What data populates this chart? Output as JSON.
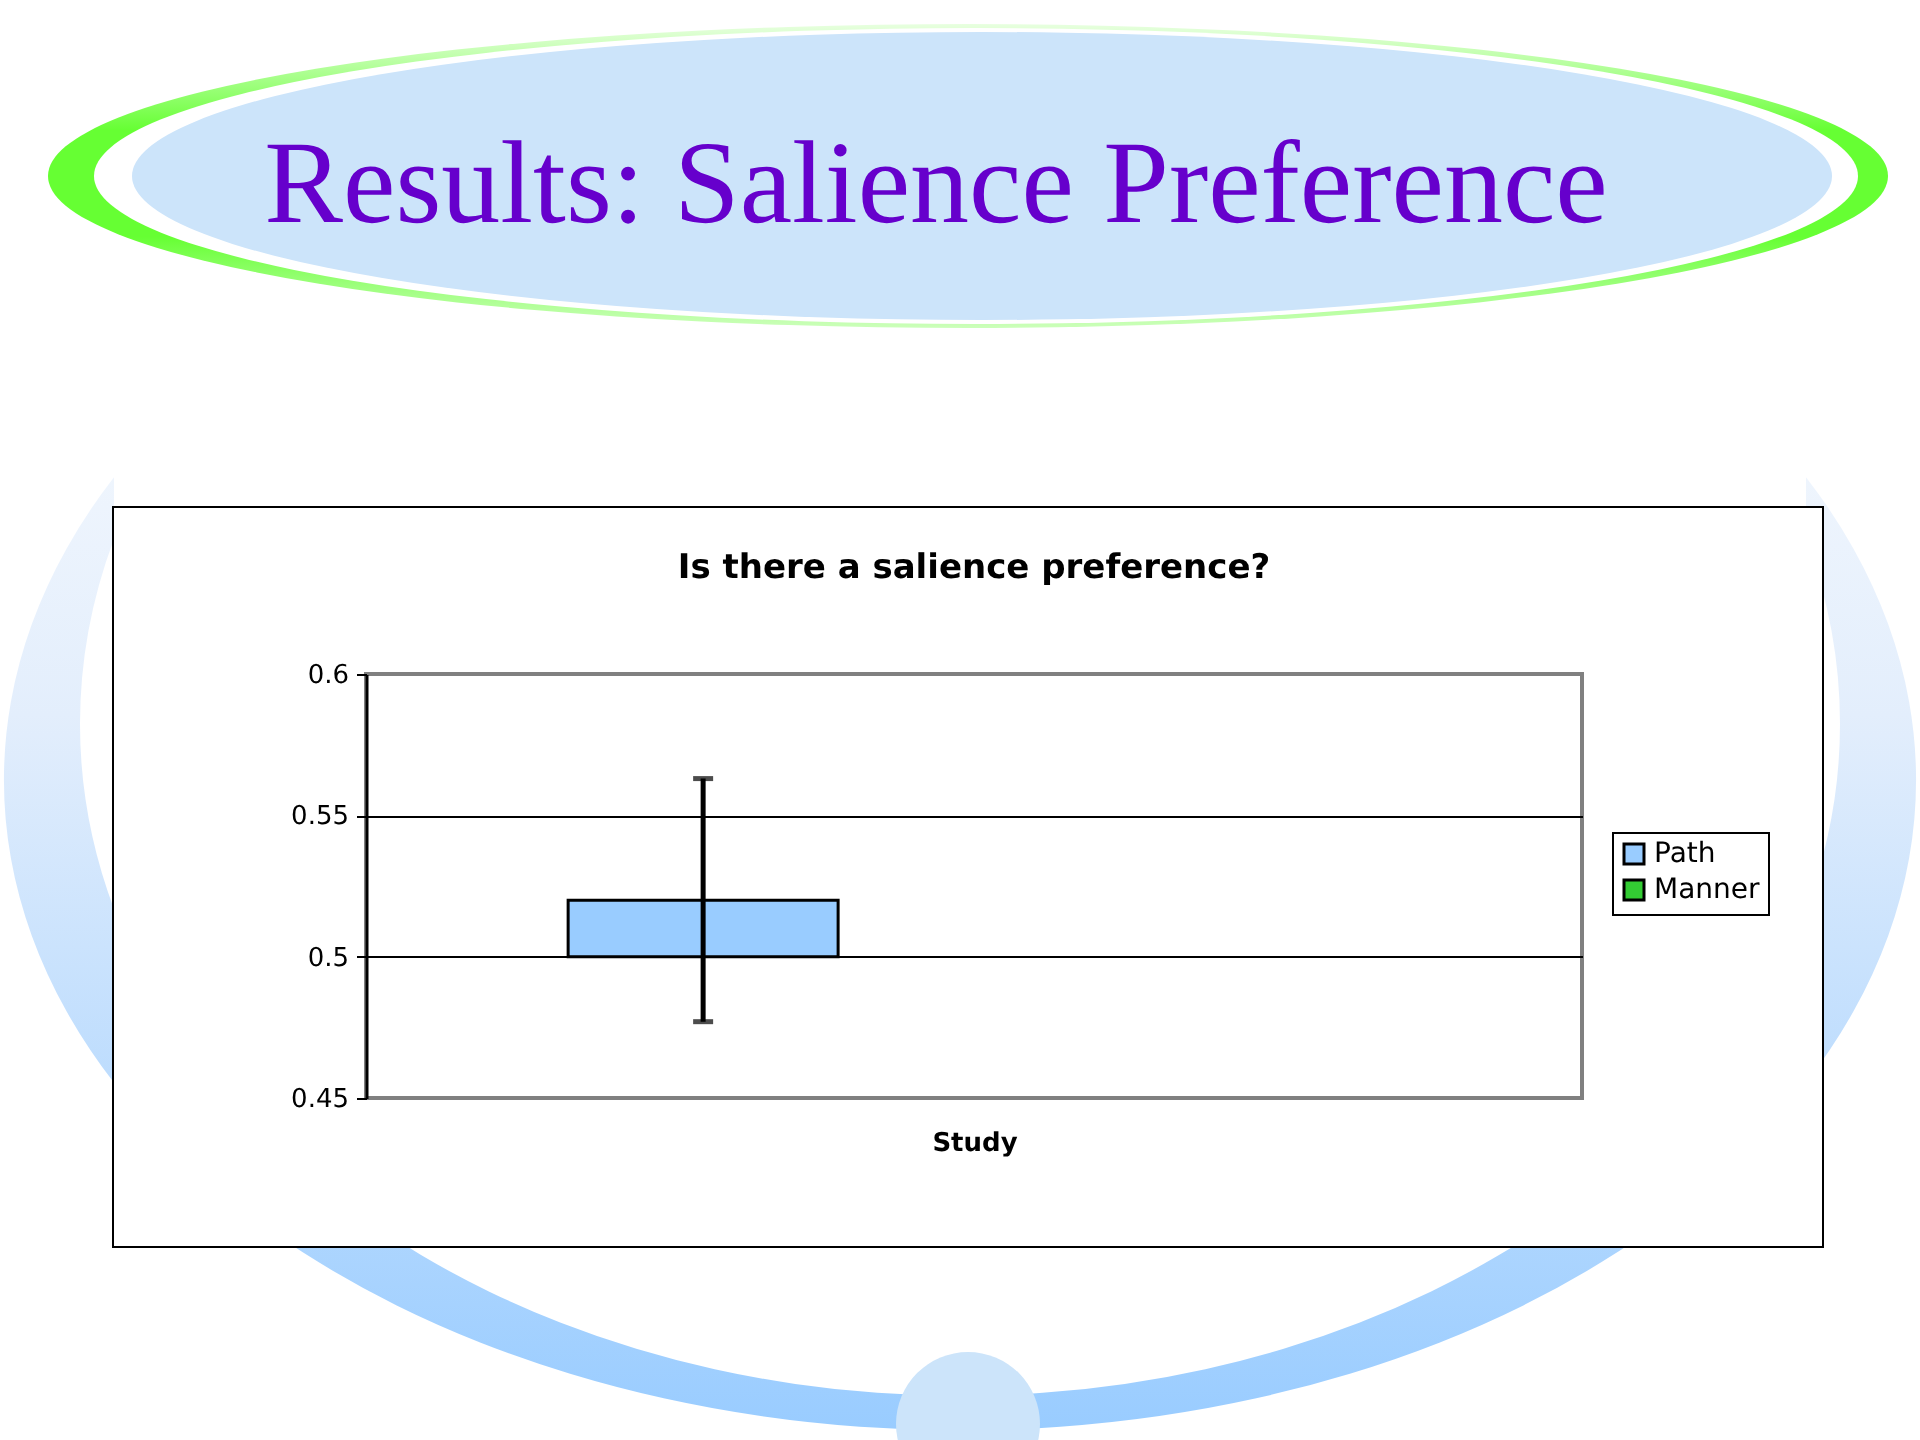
{
  "chart_data": {
    "type": "bar",
    "title": "Results: Salience Preference",
    "subtitle": "Is there a salience preference?",
    "xlabel": "Study",
    "categories": [
      null
    ],
    "series": [
      {
        "name": "Path",
        "color": "#99ccff",
        "values": [
          0.02
        ],
        "base": [
          0.5
        ],
        "errors": [
          0.043
        ]
      },
      {
        "name": "Manner",
        "color": "#33cc33",
        "values": [
          null
        ]
      }
    ],
    "ylim": [
      0.45,
      0.6
    ],
    "yticks": [
      0.45,
      0.5,
      0.55,
      0.6
    ],
    "grid": "y",
    "legend": "right",
    "tick_labels": "y"
  }
}
